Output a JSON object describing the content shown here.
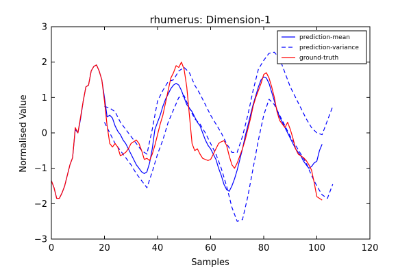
{
  "chart_data": {
    "type": "line",
    "title": "rhumerus: Dimension-1",
    "xlabel": "Samples",
    "ylabel": "Normalised Value",
    "xlim": [
      0,
      120
    ],
    "ylim": [
      -3,
      3
    ],
    "xticks": [
      0,
      20,
      40,
      60,
      80,
      100,
      120
    ],
    "yticks": [
      -3,
      -2,
      -1,
      0,
      1,
      2,
      3
    ],
    "grid": false,
    "legend_position": "top-right",
    "series": [
      {
        "name": "prediction-mean",
        "color": "#0000ff",
        "style": "solid",
        "points": [
          [
            0,
            -1.35
          ],
          [
            1,
            -1.55
          ],
          [
            2,
            -1.85
          ],
          [
            3,
            -1.85
          ],
          [
            4,
            -1.7
          ],
          [
            5,
            -1.5
          ],
          [
            6,
            -1.2
          ],
          [
            7,
            -0.9
          ],
          [
            8,
            -0.7
          ],
          [
            9,
            0.1
          ],
          [
            10,
            0.0
          ],
          [
            11,
            0.4
          ],
          [
            12,
            0.9
          ],
          [
            13,
            1.3
          ],
          [
            14,
            1.35
          ],
          [
            15,
            1.75
          ],
          [
            16,
            1.88
          ],
          [
            17,
            1.92
          ],
          [
            18,
            1.75
          ],
          [
            19,
            1.5
          ],
          [
            20,
            1.0
          ],
          [
            21,
            0.45
          ],
          [
            22,
            0.5
          ],
          [
            23,
            0.42
          ],
          [
            24,
            0.2
          ],
          [
            25,
            0.05
          ],
          [
            26,
            -0.05
          ],
          [
            27,
            -0.2
          ],
          [
            28,
            -0.3
          ],
          [
            29,
            -0.45
          ],
          [
            30,
            -0.6
          ],
          [
            31,
            -0.75
          ],
          [
            32,
            -0.9
          ],
          [
            33,
            -1.0
          ],
          [
            34,
            -1.1
          ],
          [
            35,
            -1.15
          ],
          [
            36,
            -1.1
          ],
          [
            37,
            -0.85
          ],
          [
            38,
            -0.45
          ],
          [
            39,
            0.1
          ],
          [
            40,
            0.3
          ],
          [
            41,
            0.5
          ],
          [
            42,
            0.75
          ],
          [
            43,
            0.95
          ],
          [
            44,
            1.1
          ],
          [
            45,
            1.25
          ],
          [
            46,
            1.35
          ],
          [
            47,
            1.4
          ],
          [
            48,
            1.35
          ],
          [
            49,
            1.2
          ],
          [
            50,
            1.0
          ],
          [
            51,
            0.8
          ],
          [
            52,
            0.7
          ],
          [
            53,
            0.6
          ],
          [
            54,
            0.45
          ],
          [
            55,
            0.3
          ],
          [
            56,
            0.2
          ],
          [
            57,
            0.0
          ],
          [
            58,
            -0.2
          ],
          [
            59,
            -0.35
          ],
          [
            60,
            -0.45
          ],
          [
            61,
            -0.6
          ],
          [
            62,
            -0.75
          ],
          [
            63,
            -1.0
          ],
          [
            64,
            -1.2
          ],
          [
            65,
            -1.45
          ],
          [
            66,
            -1.6
          ],
          [
            67,
            -1.65
          ],
          [
            68,
            -1.5
          ],
          [
            69,
            -1.3
          ],
          [
            70,
            -1.05
          ],
          [
            71,
            -0.75
          ],
          [
            72,
            -0.45
          ],
          [
            73,
            -0.1
          ],
          [
            74,
            0.2
          ],
          [
            75,
            0.5
          ],
          [
            76,
            0.8
          ],
          [
            77,
            1.05
          ],
          [
            78,
            1.3
          ],
          [
            79,
            1.5
          ],
          [
            80,
            1.58
          ],
          [
            81,
            1.55
          ],
          [
            82,
            1.4
          ],
          [
            83,
            1.15
          ],
          [
            84,
            0.9
          ],
          [
            85,
            0.65
          ],
          [
            86,
            0.45
          ],
          [
            87,
            0.3
          ],
          [
            88,
            0.15
          ],
          [
            89,
            0.0
          ],
          [
            90,
            -0.15
          ],
          [
            91,
            -0.3
          ],
          [
            92,
            -0.45
          ],
          [
            93,
            -0.55
          ],
          [
            94,
            -0.65
          ],
          [
            95,
            -0.8
          ],
          [
            96,
            -0.9
          ],
          [
            97,
            -1.0
          ],
          [
            98,
            -0.95
          ],
          [
            99,
            -0.85
          ],
          [
            100,
            -0.8
          ],
          [
            101,
            -0.5
          ],
          [
            102,
            -0.32
          ]
        ]
      },
      {
        "name": "prediction-variance",
        "color": "#0000ff",
        "style": "dashed",
        "points_upper": [
          [
            20,
            0.75
          ],
          [
            22,
            0.7
          ],
          [
            24,
            0.6
          ],
          [
            26,
            0.3
          ],
          [
            28,
            0.1
          ],
          [
            30,
            -0.1
          ],
          [
            32,
            -0.3
          ],
          [
            34,
            -0.5
          ],
          [
            36,
            -0.6
          ],
          [
            38,
            0.1
          ],
          [
            40,
            0.9
          ],
          [
            42,
            1.2
          ],
          [
            44,
            1.45
          ],
          [
            46,
            1.5
          ],
          [
            48,
            1.75
          ],
          [
            50,
            1.85
          ],
          [
            52,
            1.7
          ],
          [
            54,
            1.35
          ],
          [
            56,
            1.1
          ],
          [
            58,
            0.8
          ],
          [
            60,
            0.5
          ],
          [
            62,
            0.25
          ],
          [
            64,
            0.0
          ],
          [
            66,
            -0.3
          ],
          [
            68,
            -0.55
          ],
          [
            70,
            -0.55
          ],
          [
            72,
            -0.1
          ],
          [
            74,
            0.5
          ],
          [
            76,
            1.2
          ],
          [
            78,
            1.8
          ],
          [
            80,
            2.05
          ],
          [
            82,
            2.25
          ],
          [
            84,
            2.28
          ],
          [
            86,
            2.1
          ],
          [
            88,
            1.7
          ],
          [
            90,
            1.3
          ],
          [
            92,
            1.0
          ],
          [
            94,
            0.7
          ],
          [
            96,
            0.4
          ],
          [
            98,
            0.15
          ],
          [
            100,
            0.0
          ],
          [
            102,
            -0.05
          ],
          [
            104,
            0.35
          ],
          [
            106,
            0.75
          ]
        ],
        "points_lower": [
          [
            20,
            0.3
          ],
          [
            22,
            0.0
          ],
          [
            24,
            -0.3
          ],
          [
            26,
            -0.5
          ],
          [
            28,
            -0.7
          ],
          [
            30,
            -0.9
          ],
          [
            32,
            -1.15
          ],
          [
            34,
            -1.35
          ],
          [
            36,
            -1.55
          ],
          [
            38,
            -1.1
          ],
          [
            40,
            -0.6
          ],
          [
            42,
            -0.2
          ],
          [
            44,
            0.3
          ],
          [
            46,
            0.65
          ],
          [
            48,
            1.0
          ],
          [
            50,
            1.05
          ],
          [
            52,
            0.7
          ],
          [
            54,
            0.4
          ],
          [
            56,
            0.25
          ],
          [
            58,
            0.0
          ],
          [
            60,
            -0.3
          ],
          [
            62,
            -0.6
          ],
          [
            64,
            -1.0
          ],
          [
            66,
            -1.5
          ],
          [
            68,
            -2.1
          ],
          [
            70,
            -2.5
          ],
          [
            72,
            -2.45
          ],
          [
            74,
            -1.8
          ],
          [
            76,
            -1.0
          ],
          [
            78,
            -0.2
          ],
          [
            80,
            0.5
          ],
          [
            82,
            0.95
          ],
          [
            84,
            0.8
          ],
          [
            86,
            0.5
          ],
          [
            88,
            0.2
          ],
          [
            90,
            -0.1
          ],
          [
            92,
            -0.35
          ],
          [
            94,
            -0.6
          ],
          [
            96,
            -0.85
          ],
          [
            98,
            -1.2
          ],
          [
            100,
            -1.5
          ],
          [
            102,
            -1.75
          ],
          [
            104,
            -1.85
          ],
          [
            106,
            -1.45
          ]
        ]
      },
      {
        "name": "ground-truth",
        "color": "#ff0000",
        "style": "solid",
        "points": [
          [
            0,
            -1.35
          ],
          [
            1,
            -1.55
          ],
          [
            2,
            -1.85
          ],
          [
            3,
            -1.85
          ],
          [
            4,
            -1.7
          ],
          [
            5,
            -1.5
          ],
          [
            6,
            -1.2
          ],
          [
            7,
            -0.9
          ],
          [
            8,
            -0.7
          ],
          [
            9,
            0.15
          ],
          [
            10,
            0.0
          ],
          [
            11,
            0.45
          ],
          [
            12,
            0.9
          ],
          [
            13,
            1.3
          ],
          [
            14,
            1.35
          ],
          [
            15,
            1.75
          ],
          [
            16,
            1.88
          ],
          [
            17,
            1.92
          ],
          [
            18,
            1.75
          ],
          [
            19,
            1.5
          ],
          [
            20,
            0.9
          ],
          [
            21,
            0.2
          ],
          [
            22,
            -0.3
          ],
          [
            23,
            -0.4
          ],
          [
            24,
            -0.3
          ],
          [
            25,
            -0.4
          ],
          [
            26,
            -0.65
          ],
          [
            27,
            -0.6
          ],
          [
            28,
            -0.55
          ],
          [
            29,
            -0.45
          ],
          [
            30,
            -0.3
          ],
          [
            31,
            -0.25
          ],
          [
            32,
            -0.2
          ],
          [
            33,
            -0.3
          ],
          [
            34,
            -0.5
          ],
          [
            35,
            -0.75
          ],
          [
            36,
            -0.72
          ],
          [
            37,
            -0.78
          ],
          [
            38,
            -0.6
          ],
          [
            39,
            -0.35
          ],
          [
            40,
            -0.05
          ],
          [
            41,
            0.25
          ],
          [
            42,
            0.5
          ],
          [
            43,
            0.85
          ],
          [
            44,
            1.2
          ],
          [
            45,
            1.55
          ],
          [
            46,
            1.7
          ],
          [
            47,
            1.9
          ],
          [
            48,
            1.85
          ],
          [
            49,
            2.0
          ],
          [
            50,
            1.8
          ],
          [
            51,
            1.3
          ],
          [
            52,
            0.5
          ],
          [
            53,
            -0.3
          ],
          [
            54,
            -0.5
          ],
          [
            55,
            -0.45
          ],
          [
            56,
            -0.6
          ],
          [
            57,
            -0.72
          ],
          [
            58,
            -0.75
          ],
          [
            59,
            -0.78
          ],
          [
            60,
            -0.75
          ],
          [
            61,
            -0.6
          ],
          [
            62,
            -0.45
          ],
          [
            63,
            -0.3
          ],
          [
            64,
            -0.25
          ],
          [
            65,
            -0.22
          ],
          [
            66,
            -0.35
          ],
          [
            67,
            -0.65
          ],
          [
            68,
            -0.9
          ],
          [
            69,
            -1.0
          ],
          [
            70,
            -0.85
          ],
          [
            71,
            -0.65
          ],
          [
            72,
            -0.45
          ],
          [
            73,
            -0.2
          ],
          [
            74,
            0.1
          ],
          [
            75,
            0.4
          ],
          [
            76,
            0.75
          ],
          [
            77,
            1.0
          ],
          [
            78,
            1.2
          ],
          [
            79,
            1.4
          ],
          [
            80,
            1.65
          ],
          [
            81,
            1.7
          ],
          [
            82,
            1.55
          ],
          [
            83,
            1.3
          ],
          [
            84,
            1.0
          ],
          [
            85,
            0.6
          ],
          [
            86,
            0.35
          ],
          [
            87,
            0.25
          ],
          [
            88,
            0.15
          ],
          [
            89,
            0.3
          ],
          [
            90,
            0.1
          ],
          [
            91,
            -0.15
          ],
          [
            92,
            -0.45
          ],
          [
            93,
            -0.6
          ],
          [
            94,
            -0.65
          ],
          [
            95,
            -0.7
          ],
          [
            96,
            -0.78
          ],
          [
            97,
            -0.9
          ],
          [
            98,
            -1.05
          ],
          [
            99,
            -1.4
          ],
          [
            100,
            -1.8
          ],
          [
            101,
            -1.85
          ],
          [
            102,
            -1.9
          ]
        ]
      }
    ]
  }
}
